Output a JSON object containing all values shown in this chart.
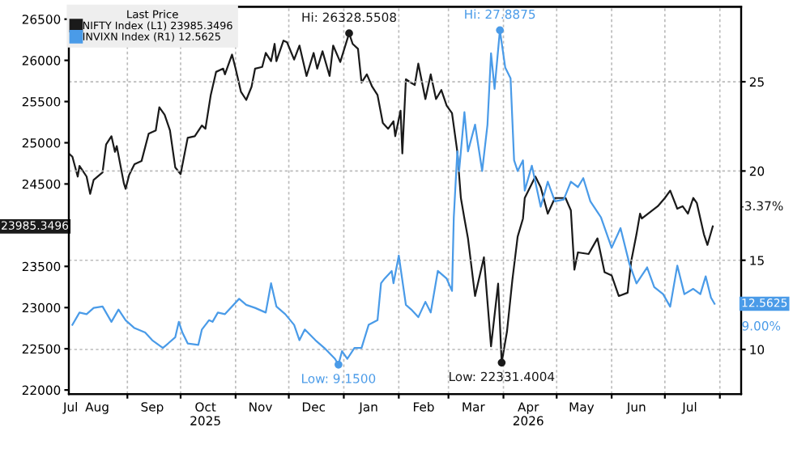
{
  "chart_data": {
    "type": "line",
    "legend_title": "Last Price",
    "legend": "top left",
    "grid": true,
    "xlim": [
      "2025-07-30",
      "2026-08-13"
    ],
    "xticks": [
      {
        "value": "2025-07-31",
        "label": "Jul"
      },
      {
        "value": "2025-08-15",
        "label": "Aug"
      },
      {
        "value": "2025-09-15",
        "label": "Sep"
      },
      {
        "value": "2025-10-15",
        "label": "Oct\n2025"
      },
      {
        "value": "2025-11-15",
        "label": "Nov"
      },
      {
        "value": "2025-12-15",
        "label": "Dec"
      },
      {
        "value": "2026-01-15",
        "label": "Jan"
      },
      {
        "value": "2026-02-15",
        "label": "Feb"
      },
      {
        "value": "2026-03-15",
        "label": "Mar"
      },
      {
        "value": "2026-04-15",
        "label": "Apr\n2026"
      },
      {
        "value": "2026-05-15",
        "label": "May"
      },
      {
        "value": "2026-06-15",
        "label": "Jun"
      },
      {
        "value": "2026-07-15",
        "label": "Jul"
      },
      {
        "value": "2025-09-01",
        "label": null
      },
      {
        "value": "2025-10-01",
        "label": null
      },
      {
        "value": "2025-11-01",
        "label": null
      },
      {
        "value": "2025-12-01",
        "label": null
      },
      {
        "value": "2026-01-01",
        "label": null
      },
      {
        "value": "2026-02-01",
        "label": null
      },
      {
        "value": "2026-03-01",
        "label": null
      },
      {
        "value": "2026-04-01",
        "label": null
      },
      {
        "value": "2026-05-01",
        "label": null
      },
      {
        "value": "2026-06-01",
        "label": null
      },
      {
        "value": "2026-07-01",
        "label": null
      },
      {
        "value": "2026-08-01",
        "label": null
      }
    ],
    "ylim": [
      21950,
      26650
    ],
    "yticks": [
      22000,
      22500,
      23000,
      23500,
      {
        "value": 24000,
        "label": null
      },
      24500,
      25000,
      25500,
      26000,
      26500
    ],
    "y2lim": [
      7.5,
      29.2
    ],
    "y2ticks": [
      10,
      15,
      20,
      25
    ],
    "series": [
      {
        "name": "NIFTY Index (L1) 23985.3496",
        "color": "#1a1a1a",
        "axis": "y",
        "x": [
          "2025-07-30",
          "2025-08-01",
          "2025-08-04",
          "2025-08-05",
          "2025-08-09",
          "2025-08-11",
          "2025-08-13",
          "2025-08-18",
          "2025-08-20",
          "2025-08-23",
          "2025-08-25",
          "2025-08-26",
          "2025-08-30",
          "2025-08-31",
          "2025-09-02",
          "2025-09-05",
          "2025-09-09",
          "2025-09-13",
          "2025-09-17",
          "2025-09-19",
          "2025-09-22",
          "2025-09-25",
          "2025-09-28",
          "2025-10-01",
          "2025-10-05",
          "2025-10-09",
          "2025-10-13",
          "2025-10-15",
          "2025-10-18",
          "2025-10-21",
          "2025-10-25",
          "2025-10-26",
          "2025-10-30",
          "2025-11-01",
          "2025-11-04",
          "2025-11-07",
          "2025-11-10",
          "2025-11-12",
          "2025-11-16",
          "2025-11-18",
          "2025-11-21",
          "2025-11-23",
          "2025-11-24",
          "2025-11-28",
          "2025-11-30",
          "2025-12-04",
          "2025-12-07",
          "2025-12-11",
          "2025-12-15",
          "2025-12-17",
          "2025-12-20",
          "2025-12-24",
          "2025-12-26",
          "2025-12-30",
          "2026-01-04",
          "2026-01-06",
          "2026-01-09",
          "2026-01-11",
          "2026-01-14",
          "2026-01-17",
          "2026-01-20",
          "2026-01-23",
          "2026-01-26",
          "2026-01-29",
          "2026-01-30",
          "2026-02-02",
          "2026-02-03",
          "2026-02-05",
          "2026-02-10",
          "2026-02-12",
          "2026-02-16",
          "2026-02-19",
          "2026-02-22",
          "2026-02-25",
          "2026-02-28",
          "2026-03-03",
          "2026-03-06",
          "2026-03-08",
          "2026-03-10",
          "2026-03-12",
          "2026-03-16",
          "2026-03-21",
          "2026-03-25",
          "2026-03-29",
          "2026-03-31",
          "2026-04-03",
          "2026-04-06",
          "2026-04-09",
          "2026-04-12",
          "2026-04-13",
          "2026-04-19",
          "2026-04-22",
          "2026-04-26",
          "2026-04-30",
          "2026-05-06",
          "2026-05-09",
          "2026-05-11",
          "2026-05-13",
          "2026-05-19",
          "2026-05-24",
          "2026-05-28",
          "2026-06-01",
          "2026-06-05",
          "2026-06-10",
          "2026-06-12",
          "2026-06-15",
          "2026-06-17",
          "2026-06-18",
          "2026-06-27",
          "2026-07-01",
          "2026-07-04",
          "2026-07-08",
          "2026-07-11",
          "2026-07-14",
          "2026-07-17",
          "2026-07-19",
          "2026-07-23",
          "2026-07-25",
          "2026-07-28"
        ],
        "values": [
          24870,
          24830,
          24590,
          24720,
          24590,
          24380,
          24550,
          24640,
          24980,
          25080,
          24890,
          24960,
          24510,
          24440,
          24610,
          24740,
          24780,
          25110,
          25150,
          25430,
          25340,
          25150,
          24700,
          24620,
          25060,
          25080,
          25210,
          25170,
          25580,
          25860,
          25900,
          25830,
          26070,
          25900,
          25620,
          25520,
          25680,
          25900,
          25920,
          26090,
          25990,
          26200,
          25990,
          26240,
          26220,
          26010,
          26180,
          25810,
          26090,
          25900,
          26110,
          25810,
          26180,
          25980,
          26328.5508,
          26200,
          26140,
          25730,
          25830,
          25680,
          25580,
          25240,
          25170,
          25260,
          25080,
          25390,
          24870,
          25770,
          25700,
          25960,
          25530,
          25830,
          25530,
          25640,
          25450,
          25360,
          24890,
          24330,
          24080,
          23840,
          23140,
          23610,
          22530,
          23290,
          22331.4004,
          22710,
          23330,
          23860,
          24080,
          24330,
          24590,
          24460,
          24140,
          24330,
          24330,
          24180,
          23460,
          23670,
          23650,
          23840,
          23430,
          23390,
          23140,
          23180,
          23560,
          23890,
          24140,
          24080,
          24230,
          24330,
          24420,
          24200,
          24230,
          24140,
          24330,
          24270,
          23890,
          23760,
          23985.3496
        ]
      },
      {
        "name": "INVIXN Index (R1) 12.5625",
        "color": "#4a9be8",
        "axis": "y2",
        "x": [
          "2025-08-01",
          "2025-08-05",
          "2025-08-09",
          "2025-08-13",
          "2025-08-18",
          "2025-08-23",
          "2025-08-27",
          "2025-08-31",
          "2025-09-05",
          "2025-09-11",
          "2025-09-15",
          "2025-09-21",
          "2025-09-24",
          "2025-09-28",
          "2025-09-30",
          "2025-10-02",
          "2025-10-05",
          "2025-10-11",
          "2025-10-13",
          "2025-10-17",
          "2025-10-19",
          "2025-10-22",
          "2025-10-26",
          "2025-11-03",
          "2025-11-07",
          "2025-11-12",
          "2025-11-18",
          "2025-11-21",
          "2025-11-24",
          "2025-11-29",
          "2025-12-04",
          "2025-12-07",
          "2025-12-10",
          "2025-12-16",
          "2025-12-21",
          "2025-12-27",
          "2025-12-29",
          "2025-12-31",
          "2026-01-03",
          "2026-01-07",
          "2026-01-11",
          "2026-01-15",
          "2026-01-20",
          "2026-01-22",
          "2026-01-24",
          "2026-01-28",
          "2026-01-29",
          "2026-02-01",
          "2026-02-05",
          "2026-02-08",
          "2026-02-12",
          "2026-02-16",
          "2026-02-19",
          "2026-02-23",
          "2026-02-28",
          "2026-03-03",
          "2026-03-04",
          "2026-03-06",
          "2026-03-07",
          "2026-03-10",
          "2026-03-12",
          "2026-03-16",
          "2026-03-20",
          "2026-03-23",
          "2026-03-25",
          "2026-03-27",
          "2026-03-30",
          "2026-04-02",
          "2026-04-05",
          "2026-04-07",
          "2026-04-09",
          "2026-04-12",
          "2026-04-13",
          "2026-04-17",
          "2026-04-22",
          "2026-04-26",
          "2026-04-30",
          "2026-05-05",
          "2026-05-09",
          "2026-05-13",
          "2026-05-16",
          "2026-05-20",
          "2026-05-24",
          "2026-05-26",
          "2026-06-01",
          "2026-06-06",
          "2026-06-11",
          "2026-06-15",
          "2026-06-21",
          "2026-06-25",
          "2026-06-30",
          "2026-07-04",
          "2026-07-08",
          "2026-07-12",
          "2026-07-17",
          "2026-07-21",
          "2026-07-24",
          "2026-07-27",
          "2026-07-29"
        ],
        "values": [
          11.38,
          12.07,
          11.98,
          12.33,
          12.41,
          11.55,
          12.24,
          11.64,
          11.2,
          10.95,
          10.52,
          10.09,
          10.34,
          10.69,
          11.55,
          10.95,
          10.34,
          10.26,
          11.12,
          11.64,
          11.55,
          12.07,
          11.98,
          12.84,
          12.5,
          12.33,
          12.07,
          13.71,
          12.41,
          11.98,
          11.38,
          10.52,
          11.12,
          10.52,
          10.09,
          9.48,
          9.15,
          9.91,
          9.48,
          10.09,
          10.09,
          11.38,
          11.64,
          13.71,
          13.97,
          14.4,
          13.71,
          15.26,
          12.5,
          12.24,
          11.81,
          12.67,
          12.07,
          14.4,
          13.97,
          13.28,
          17.4,
          21.1,
          20.0,
          23.3,
          21.1,
          22.6,
          20.0,
          22.6,
          26.6,
          24.6,
          27.8875,
          25.8,
          25.2,
          20.6,
          20.0,
          20.6,
          18.9,
          20.3,
          18.0,
          19.4,
          18.3,
          18.4,
          19.4,
          19.1,
          19.6,
          18.3,
          17.7,
          17.4,
          15.7,
          16.8,
          14.8,
          13.7,
          14.6,
          13.5,
          13.1,
          12.4,
          14.7,
          13.1,
          13.4,
          13.1,
          14.1,
          12.9,
          12.5625
        ]
      }
    ],
    "annotations": [
      {
        "text": "Hi: 26328.5508",
        "x": "2026-01-04",
        "y": 26328.5508
      },
      {
        "text": "Low: 22331.4004",
        "x": "2026-03-31",
        "y": 22331.4004
      },
      "Hi: 27.8875",
      "Low: 9.1500",
      {
        "text": "-3.37%",
        "x": "2026-07-28",
        "y": 23985.3496
      },
      "9.00%",
      "23985.3496",
      "12.5625"
    ]
  }
}
